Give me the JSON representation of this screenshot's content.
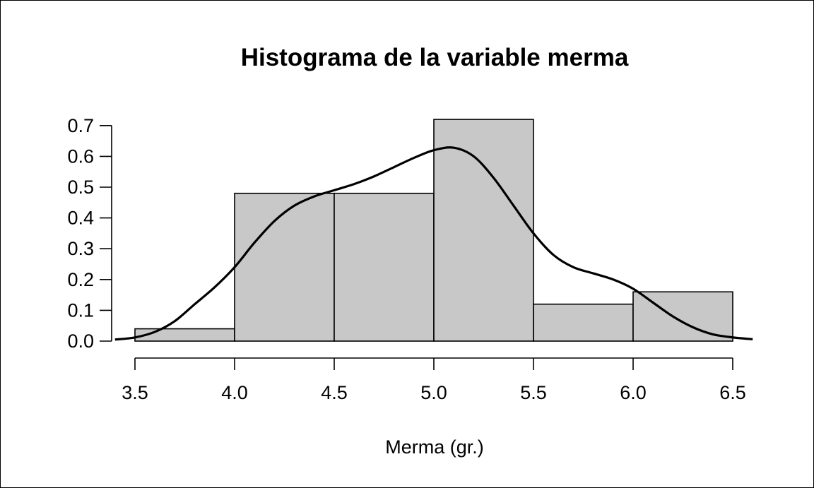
{
  "chart_data": {
    "type": "histogram",
    "title": "Histograma de la variable merma",
    "xlabel": "Merma (gr.)",
    "ylabel": "",
    "bins": [
      {
        "from": 3.5,
        "to": 4.0,
        "density": 0.04
      },
      {
        "from": 4.0,
        "to": 4.5,
        "density": 0.48
      },
      {
        "from": 4.5,
        "to": 5.0,
        "density": 0.48
      },
      {
        "from": 5.0,
        "to": 5.5,
        "density": 0.72
      },
      {
        "from": 5.5,
        "to": 6.0,
        "density": 0.12
      },
      {
        "from": 6.0,
        "to": 6.5,
        "density": 0.16
      }
    ],
    "density_curve": {
      "x": [
        3.4,
        3.5,
        3.6,
        3.7,
        3.8,
        3.9,
        4.0,
        4.1,
        4.2,
        4.3,
        4.4,
        4.5,
        4.6,
        4.7,
        4.8,
        4.9,
        5.0,
        5.1,
        5.2,
        5.3,
        5.4,
        5.5,
        5.6,
        5.7,
        5.8,
        5.9,
        6.0,
        6.1,
        6.2,
        6.3,
        6.4,
        6.5,
        6.6
      ],
      "y": [
        0.005,
        0.012,
        0.03,
        0.065,
        0.12,
        0.175,
        0.24,
        0.32,
        0.39,
        0.44,
        0.47,
        0.49,
        0.51,
        0.535,
        0.565,
        0.595,
        0.62,
        0.628,
        0.6,
        0.53,
        0.44,
        0.35,
        0.28,
        0.24,
        0.22,
        0.2,
        0.17,
        0.125,
        0.08,
        0.045,
        0.022,
        0.012,
        0.006
      ]
    },
    "xticks": [
      "3.5",
      "4.0",
      "4.5",
      "5.0",
      "5.5",
      "6.0",
      "6.5"
    ],
    "xtick_values": [
      3.5,
      4.0,
      4.5,
      5.0,
      5.5,
      6.0,
      6.5
    ],
    "yticks": [
      "0.0",
      "0.1",
      "0.2",
      "0.3",
      "0.4",
      "0.5",
      "0.6",
      "0.7"
    ],
    "ytick_values": [
      0,
      0.1,
      0.2,
      0.3,
      0.4,
      0.5,
      0.6,
      0.7
    ],
    "xlim": [
      3.4,
      6.6
    ],
    "ylim": [
      0,
      0.72
    ],
    "grid": false,
    "bar_color": "#c8c8c8",
    "line_color": "#000000"
  }
}
